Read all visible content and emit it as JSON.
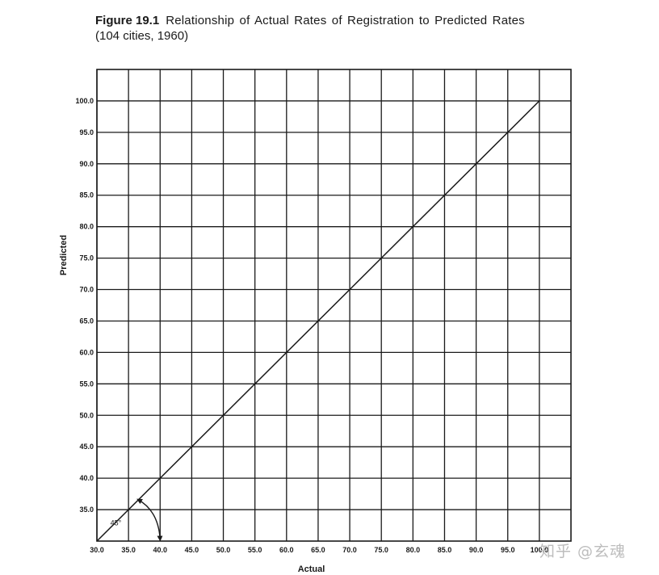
{
  "caption": {
    "figure_label": "Figure 19.1",
    "title": "Relationship of Actual Rates of Registration to Predicted Rates",
    "subtitle": "(104 cities, 1960)"
  },
  "chart_data": {
    "type": "line",
    "title": "Relationship of Actual Rates of Registration to Predicted Rates",
    "subtitle": "(104 cities, 1960)",
    "xlabel": "Actual",
    "ylabel": "Predicted",
    "xlim": [
      30,
      105
    ],
    "ylim": [
      30,
      105
    ],
    "x_ticks": [
      "30.0",
      "35.0",
      "40.0",
      "45.0",
      "50.0",
      "55.0",
      "60.0",
      "65.0",
      "70.0",
      "75.0",
      "80.0",
      "85.0",
      "90.0",
      "95.0",
      "100.0"
    ],
    "y_ticks": [
      "35.0",
      "40.0",
      "45.0",
      "50.0",
      "55.0",
      "60.0",
      "65.0",
      "70.0",
      "75.0",
      "80.0",
      "85.0",
      "90.0",
      "95.0",
      "100.0"
    ],
    "grid": true,
    "series": [
      {
        "x": [
          30,
          100
        ],
        "y": [
          30,
          100
        ]
      }
    ],
    "annotations": [
      {
        "text": "45°",
        "x": 33,
        "y": 32.5
      }
    ],
    "line_color": "#1a1a1a",
    "grid_color": "#1a1a1a"
  },
  "watermark": "知乎 @玄魂"
}
